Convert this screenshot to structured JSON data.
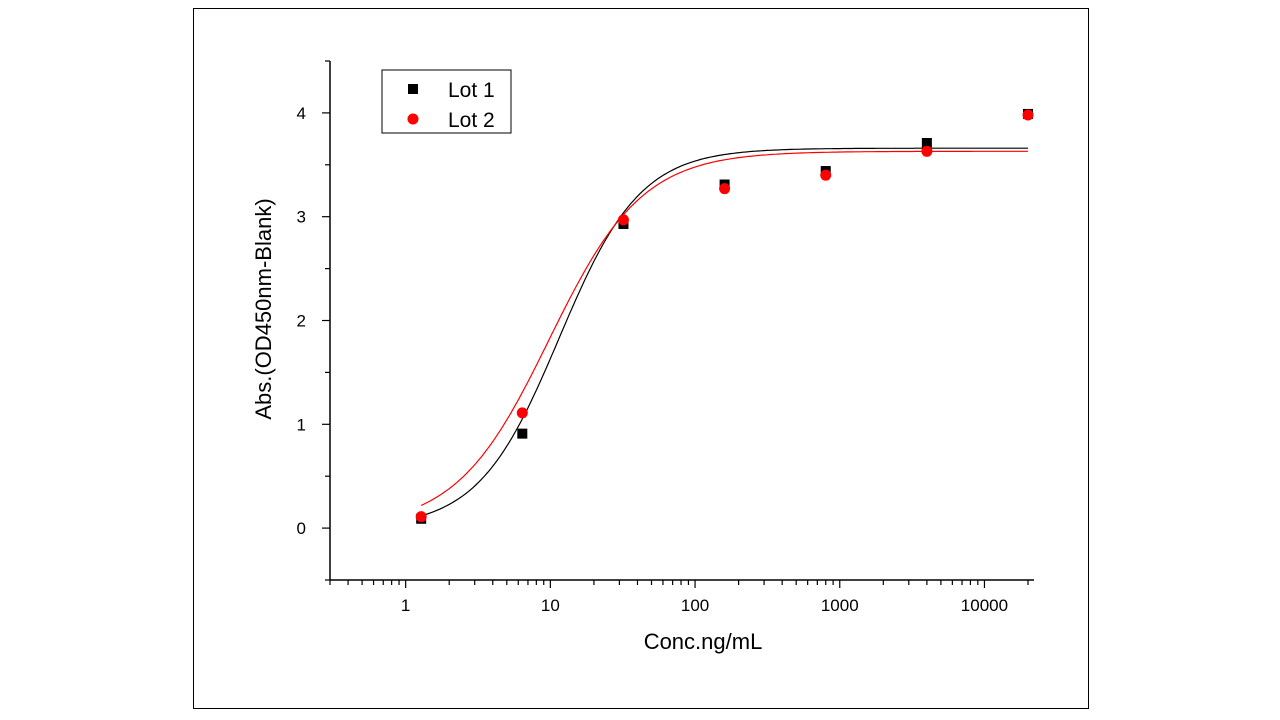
{
  "chart_data": {
    "type": "scatter",
    "title": "",
    "xlabel": "Conc.ng/mL",
    "ylabel": "Abs.(OD450nm-Blank)",
    "xscale": "log",
    "xlim": [
      0.3,
      22000
    ],
    "ylim": [
      -0.5,
      4.5
    ],
    "x_ticks": [
      1,
      10,
      100,
      1000,
      10000
    ],
    "x_tick_labels": [
      "1",
      "10",
      "100",
      "1000",
      "10000"
    ],
    "y_ticks": [
      0,
      1,
      2,
      3,
      4
    ],
    "y_tick_labels": [
      "0",
      "1",
      "2",
      "3",
      "4"
    ],
    "grid": false,
    "legend_position": "top-left",
    "series": [
      {
        "name": "Lot 1",
        "marker": "square",
        "color": "#000000",
        "x": [
          1.28,
          6.4,
          32,
          160,
          800,
          4000,
          20000
        ],
        "y": [
          0.09,
          0.91,
          2.93,
          3.31,
          3.44,
          3.71,
          3.99
        ],
        "fit": {
          "model": "4PL",
          "bottom": 0.0,
          "top": 3.66,
          "ec50": 11.5,
          "hill": 1.55
        }
      },
      {
        "name": "Lot 2",
        "marker": "circle",
        "color": "#ff0000",
        "x": [
          1.28,
          6.4,
          32,
          160,
          800,
          4000,
          20000
        ],
        "y": [
          0.11,
          1.11,
          2.97,
          3.27,
          3.4,
          3.63,
          3.98
        ],
        "fit": {
          "model": "4PL",
          "bottom": 0.0,
          "top": 3.63,
          "ec50": 9.8,
          "hill": 1.35
        }
      }
    ]
  }
}
